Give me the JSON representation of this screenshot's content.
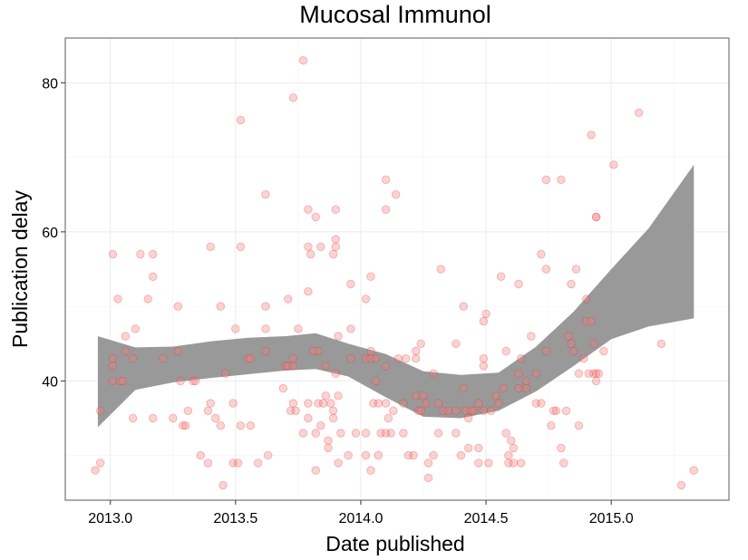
{
  "chart_data": {
    "type": "scatter",
    "title": "Mucosal Immunol",
    "xlabel": "Date published",
    "ylabel": "Publication delay",
    "xlim": [
      2012.82,
      2015.47
    ],
    "ylim": [
      24,
      86
    ],
    "x_ticks": [
      2013.0,
      2013.5,
      2014.0,
      2014.5,
      2015.0
    ],
    "x_tick_labels": [
      "2013.0",
      "2013.5",
      "2014.0",
      "2014.5",
      "2015.0"
    ],
    "y_ticks": [
      40,
      60,
      80
    ],
    "y_tick_labels": [
      "40",
      "60",
      "80"
    ],
    "grid": true,
    "point_color": "#f08080",
    "band_color": "#999999",
    "points": [
      [
        2012.94,
        28
      ],
      [
        2012.96,
        29
      ],
      [
        2012.96,
        36
      ],
      [
        2013.01,
        57
      ],
      [
        2013.01,
        43
      ],
      [
        2013.01,
        42
      ],
      [
        2013.01,
        40
      ],
      [
        2013.03,
        51
      ],
      [
        2013.04,
        40
      ],
      [
        2013.05,
        40
      ],
      [
        2013.06,
        46
      ],
      [
        2013.06,
        44
      ],
      [
        2013.09,
        43
      ],
      [
        2013.09,
        35
      ],
      [
        2013.1,
        47
      ],
      [
        2013.12,
        57
      ],
      [
        2013.15,
        51
      ],
      [
        2013.17,
        57
      ],
      [
        2013.17,
        54
      ],
      [
        2013.17,
        35
      ],
      [
        2013.21,
        43
      ],
      [
        2013.25,
        35
      ],
      [
        2013.27,
        50
      ],
      [
        2013.27,
        44
      ],
      [
        2013.28,
        40
      ],
      [
        2013.29,
        34
      ],
      [
        2013.3,
        34
      ],
      [
        2013.31,
        36
      ],
      [
        2013.33,
        40
      ],
      [
        2013.34,
        40
      ],
      [
        2013.36,
        30
      ],
      [
        2013.39,
        36
      ],
      [
        2013.39,
        29
      ],
      [
        2013.4,
        58
      ],
      [
        2013.4,
        37
      ],
      [
        2013.42,
        35
      ],
      [
        2013.44,
        50
      ],
      [
        2013.44,
        34
      ],
      [
        2013.45,
        26
      ],
      [
        2013.46,
        41
      ],
      [
        2013.49,
        37
      ],
      [
        2013.49,
        29
      ],
      [
        2013.5,
        47
      ],
      [
        2013.51,
        29
      ],
      [
        2013.52,
        75
      ],
      [
        2013.52,
        58
      ],
      [
        2013.52,
        34
      ],
      [
        2013.55,
        43
      ],
      [
        2013.56,
        43
      ],
      [
        2013.56,
        34
      ],
      [
        2013.59,
        29
      ],
      [
        2013.62,
        65
      ],
      [
        2013.62,
        50
      ],
      [
        2013.62,
        47
      ],
      [
        2013.62,
        44
      ],
      [
        2013.63,
        30
      ],
      [
        2013.69,
        39
      ],
      [
        2013.7,
        42
      ],
      [
        2013.71,
        51
      ],
      [
        2013.71,
        42
      ],
      [
        2013.72,
        36
      ],
      [
        2013.73,
        78
      ],
      [
        2013.73,
        43
      ],
      [
        2013.73,
        42
      ],
      [
        2013.73,
        37
      ],
      [
        2013.74,
        36
      ],
      [
        2013.75,
        47
      ],
      [
        2013.77,
        83
      ],
      [
        2013.77,
        33
      ],
      [
        2013.79,
        63
      ],
      [
        2013.79,
        58
      ],
      [
        2013.79,
        52
      ],
      [
        2013.79,
        37
      ],
      [
        2013.79,
        35
      ],
      [
        2013.8,
        57
      ],
      [
        2013.81,
        44
      ],
      [
        2013.82,
        62
      ],
      [
        2013.83,
        44
      ],
      [
        2013.83,
        37
      ],
      [
        2013.82,
        33
      ],
      [
        2013.82,
        28
      ],
      [
        2013.84,
        58
      ],
      [
        2013.84,
        34
      ],
      [
        2013.85,
        37
      ],
      [
        2013.86,
        42
      ],
      [
        2013.86,
        38
      ],
      [
        2013.87,
        32
      ],
      [
        2013.87,
        31
      ],
      [
        2013.88,
        37
      ],
      [
        2013.89,
        57
      ],
      [
        2013.89,
        36
      ],
      [
        2013.89,
        35
      ],
      [
        2013.9,
        63
      ],
      [
        2013.9,
        59
      ],
      [
        2013.9,
        58
      ],
      [
        2013.9,
        41
      ],
      [
        2013.91,
        46
      ],
      [
        2013.91,
        38
      ],
      [
        2013.92,
        33
      ],
      [
        2013.91,
        29
      ],
      [
        2013.96,
        53
      ],
      [
        2013.96,
        47
      ],
      [
        2013.96,
        43
      ],
      [
        2013.95,
        30
      ],
      [
        2013.98,
        33
      ],
      [
        2014.02,
        51
      ],
      [
        2014.02,
        43
      ],
      [
        2014.02,
        33
      ],
      [
        2014.02,
        30
      ],
      [
        2014.04,
        54
      ],
      [
        2014.04,
        44
      ],
      [
        2014.04,
        43
      ],
      [
        2014.04,
        28
      ],
      [
        2014.05,
        37
      ],
      [
        2014.06,
        40
      ],
      [
        2014.06,
        43
      ],
      [
        2014.07,
        37
      ],
      [
        2014.07,
        30
      ],
      [
        2014.08,
        33
      ],
      [
        2014.1,
        67
      ],
      [
        2014.1,
        63
      ],
      [
        2014.1,
        42
      ],
      [
        2014.1,
        37
      ],
      [
        2014.1,
        33
      ],
      [
        2014.11,
        35
      ],
      [
        2014.12,
        33
      ],
      [
        2014.13,
        36
      ],
      [
        2014.14,
        65
      ],
      [
        2014.15,
        43
      ],
      [
        2014.17,
        37
      ],
      [
        2014.17,
        33
      ],
      [
        2014.18,
        43
      ],
      [
        2014.19,
        30
      ],
      [
        2014.21,
        30
      ],
      [
        2014.22,
        44
      ],
      [
        2014.22,
        43
      ],
      [
        2014.22,
        38
      ],
      [
        2014.23,
        36
      ],
      [
        2014.24,
        45
      ],
      [
        2014.24,
        36
      ],
      [
        2014.25,
        38
      ],
      [
        2014.26,
        37
      ],
      [
        2014.27,
        29
      ],
      [
        2014.27,
        27
      ],
      [
        2014.29,
        41
      ],
      [
        2014.29,
        30
      ],
      [
        2014.31,
        37
      ],
      [
        2014.31,
        33
      ],
      [
        2014.32,
        55
      ],
      [
        2014.33,
        36
      ],
      [
        2014.35,
        36
      ],
      [
        2014.38,
        45
      ],
      [
        2014.38,
        33
      ],
      [
        2014.38,
        36
      ],
      [
        2014.4,
        30
      ],
      [
        2014.41,
        50
      ],
      [
        2014.41,
        39
      ],
      [
        2014.42,
        36
      ],
      [
        2014.43,
        35
      ],
      [
        2014.43,
        31
      ],
      [
        2014.44,
        36
      ],
      [
        2014.45,
        36
      ],
      [
        2014.47,
        37
      ],
      [
        2014.47,
        31
      ],
      [
        2014.47,
        29
      ],
      [
        2014.49,
        42
      ],
      [
        2014.49,
        48
      ],
      [
        2014.49,
        43
      ],
      [
        2014.49,
        36
      ],
      [
        2014.5,
        49
      ],
      [
        2014.51,
        29
      ],
      [
        2014.52,
        36
      ],
      [
        2014.54,
        38
      ],
      [
        2014.55,
        37
      ],
      [
        2014.56,
        54
      ],
      [
        2014.57,
        39
      ],
      [
        2014.58,
        44
      ],
      [
        2014.58,
        33
      ],
      [
        2014.59,
        30
      ],
      [
        2014.59,
        29
      ],
      [
        2014.6,
        32
      ],
      [
        2014.61,
        31
      ],
      [
        2014.61,
        29
      ],
      [
        2014.63,
        53
      ],
      [
        2014.63,
        41
      ],
      [
        2014.63,
        39
      ],
      [
        2014.64,
        43
      ],
      [
        2014.64,
        29
      ],
      [
        2014.66,
        40
      ],
      [
        2014.66,
        39
      ],
      [
        2014.68,
        46
      ],
      [
        2014.7,
        37
      ],
      [
        2014.7,
        41
      ],
      [
        2014.72,
        57
      ],
      [
        2014.72,
        37
      ],
      [
        2014.74,
        67
      ],
      [
        2014.74,
        55
      ],
      [
        2014.74,
        44
      ],
      [
        2014.76,
        34
      ],
      [
        2014.77,
        36
      ],
      [
        2014.78,
        36
      ],
      [
        2014.8,
        67
      ],
      [
        2014.8,
        31
      ],
      [
        2014.81,
        29
      ],
      [
        2014.82,
        36
      ],
      [
        2014.83,
        46
      ],
      [
        2014.84,
        45
      ],
      [
        2014.84,
        53
      ],
      [
        2014.85,
        44
      ],
      [
        2014.86,
        55
      ],
      [
        2014.87,
        41
      ],
      [
        2014.87,
        34
      ],
      [
        2014.89,
        43
      ],
      [
        2014.9,
        51
      ],
      [
        2014.9,
        48
      ],
      [
        2014.91,
        41
      ],
      [
        2014.92,
        73
      ],
      [
        2014.92,
        48
      ],
      [
        2014.93,
        45
      ],
      [
        2014.93,
        41
      ],
      [
        2014.94,
        62
      ],
      [
        2014.94,
        62
      ],
      [
        2014.94,
        41
      ],
      [
        2014.94,
        40
      ],
      [
        2014.95,
        41
      ],
      [
        2014.97,
        44
      ],
      [
        2015.01,
        69
      ],
      [
        2015.11,
        76
      ],
      [
        2015.2,
        45
      ],
      [
        2015.28,
        26
      ],
      [
        2015.33,
        28
      ]
    ],
    "band": {
      "x": [
        2012.95,
        2013.1,
        2013.25,
        2013.4,
        2013.55,
        2013.7,
        2013.82,
        2013.95,
        2014.1,
        2014.25,
        2014.4,
        2014.55,
        2014.7,
        2014.85,
        2015.0,
        2015.15,
        2015.33
      ],
      "upper": [
        46.0,
        44.5,
        44.6,
        45.3,
        45.8,
        46.0,
        46.4,
        45.0,
        43.6,
        41.3,
        40.8,
        41.1,
        44.6,
        49.3,
        55.0,
        60.5,
        69.0
      ],
      "lower": [
        33.8,
        38.8,
        39.8,
        40.4,
        40.9,
        41.4,
        41.6,
        40.6,
        37.8,
        35.2,
        35.0,
        36.0,
        38.6,
        42.0,
        45.6,
        47.3,
        48.4
      ]
    }
  }
}
